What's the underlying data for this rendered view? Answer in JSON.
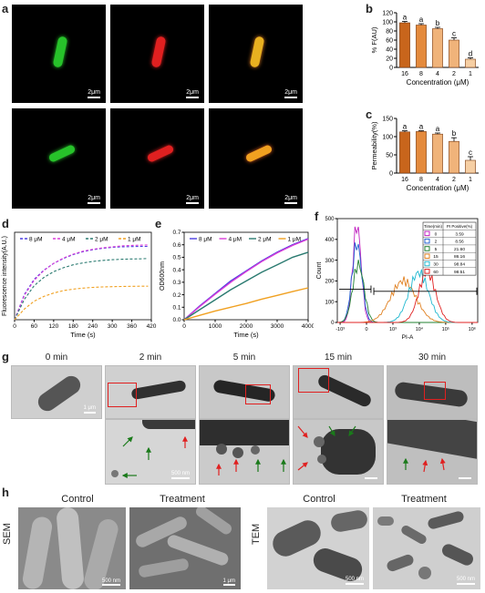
{
  "labels": {
    "a": "a",
    "b": "b",
    "c": "c",
    "d": "d",
    "e": "e",
    "f": "f",
    "g": "g",
    "h": "h"
  },
  "scalebar_2um": "2μm",
  "colors": {
    "bar_dark": "#c8651c",
    "bar_mid": "#e48a3c",
    "bar_light": "#f0b37a",
    "bar_lighter": "#f6cfa4",
    "s8": "#4b3fe0",
    "s4": "#d83bd8",
    "s2": "#2a7a70",
    "s1": "#f0a020",
    "green": "#27c22a",
    "red": "#e02020",
    "merge": "#e8b020"
  },
  "chart_b": {
    "type": "bar",
    "categories": [
      "16",
      "8",
      "4",
      "2",
      "1"
    ],
    "values": [
      98,
      93,
      85,
      60,
      18
    ],
    "errors": [
      3,
      3,
      3,
      5,
      3
    ],
    "letters": [
      "a",
      "a",
      "b",
      "c",
      "d"
    ],
    "ylabel": "% F(AU)",
    "xlabel": "Concentration (μM)",
    "ylim": [
      0,
      120
    ],
    "yticks": [
      "0",
      "20",
      "40",
      "60",
      "80",
      "100",
      "120"
    ]
  },
  "chart_c": {
    "type": "bar",
    "categories": [
      "16",
      "8",
      "4",
      "2",
      "1"
    ],
    "values": [
      113,
      114,
      107,
      87,
      35
    ],
    "errors": [
      3,
      2,
      3,
      10,
      10
    ],
    "letters": [
      "a",
      "a",
      "a",
      "b",
      "c"
    ],
    "ylabel": "Permeability(%)",
    "xlabel": "Concentration (μM)",
    "ylim": [
      0,
      150
    ],
    "yticks": [
      "0",
      "50",
      "100",
      "150"
    ]
  },
  "chart_d": {
    "type": "line",
    "xlabel": "Time (s)",
    "ylabel": "Fluorescence intensity(A.U.)",
    "xticks": [
      "0",
      "60",
      "120",
      "180",
      "240",
      "300",
      "360",
      "420"
    ],
    "xlim": [
      0,
      420
    ],
    "ylim": [
      0,
      1800
    ],
    "series": [
      {
        "name": "8 μM",
        "x": [
          0,
          30,
          60,
          90,
          120,
          150,
          180,
          210,
          240,
          270,
          300,
          330,
          360,
          390,
          410
        ],
        "y": [
          0,
          520,
          830,
          1020,
          1160,
          1260,
          1340,
          1400,
          1440,
          1470,
          1490,
          1500,
          1505,
          1510,
          1510
        ]
      },
      {
        "name": "4 μM",
        "x": [
          0,
          30,
          60,
          90,
          120,
          150,
          180,
          210,
          240,
          270,
          300,
          330,
          360,
          390,
          410
        ],
        "y": [
          0,
          500,
          810,
          1010,
          1160,
          1270,
          1350,
          1410,
          1450,
          1480,
          1500,
          1520,
          1530,
          1535,
          1540
        ]
      },
      {
        "name": "2 μM",
        "x": [
          0,
          30,
          60,
          90,
          120,
          150,
          180,
          210,
          240,
          270,
          300,
          330,
          360,
          390,
          410
        ],
        "y": [
          0,
          420,
          700,
          870,
          990,
          1070,
          1130,
          1170,
          1200,
          1220,
          1235,
          1245,
          1250,
          1255,
          1260
        ]
      },
      {
        "name": "1 μM",
        "x": [
          0,
          30,
          60,
          90,
          120,
          150,
          180,
          210,
          240,
          270,
          300,
          330,
          360,
          390,
          410
        ],
        "y": [
          0,
          220,
          380,
          480,
          550,
          600,
          630,
          650,
          665,
          675,
          680,
          685,
          688,
          690,
          690
        ]
      }
    ]
  },
  "chart_e": {
    "type": "line",
    "xlabel": "Time (s)",
    "ylabel": "OD600nm",
    "xticks": [
      "0",
      "1000",
      "2000",
      "3000",
      "4000"
    ],
    "yticks": [
      "0.0",
      "0.1",
      "0.2",
      "0.3",
      "0.4",
      "0.5",
      "0.6",
      "0.7"
    ],
    "xlim": [
      0,
      4000
    ],
    "ylim": [
      0,
      0.7
    ],
    "series": [
      {
        "name": "8 μM",
        "x": [
          0,
          500,
          1000,
          1500,
          2000,
          2500,
          3000,
          3500,
          4000
        ],
        "y": [
          0,
          0.11,
          0.21,
          0.31,
          0.39,
          0.47,
          0.54,
          0.6,
          0.65
        ]
      },
      {
        "name": "4 μM",
        "x": [
          0,
          500,
          1000,
          1500,
          2000,
          2500,
          3000,
          3500,
          4000
        ],
        "y": [
          0,
          0.105,
          0.205,
          0.3,
          0.385,
          0.465,
          0.535,
          0.595,
          0.645
        ]
      },
      {
        "name": "2 μM",
        "x": [
          0,
          500,
          1000,
          1500,
          2000,
          2500,
          3000,
          3500,
          4000
        ],
        "y": [
          0,
          0.08,
          0.16,
          0.24,
          0.31,
          0.38,
          0.44,
          0.5,
          0.54
        ]
      },
      {
        "name": "1 μM",
        "x": [
          0,
          500,
          1000,
          1500,
          2000,
          2500,
          3000,
          3500,
          4000
        ],
        "y": [
          0,
          0.035,
          0.07,
          0.1,
          0.13,
          0.165,
          0.195,
          0.225,
          0.255
        ]
      }
    ]
  },
  "chart_f": {
    "type": "line",
    "xlabel": "PI-A",
    "ylabel": "Count",
    "yticks": [
      "0",
      "100",
      "200",
      "300",
      "400",
      "500"
    ],
    "ylim": [
      0,
      500
    ],
    "xticks": [
      "-10³",
      "0",
      "10³",
      "10⁴",
      "10⁵",
      "10⁶"
    ],
    "legend_headers": [
      "Time(min)",
      "PI Positive(%)"
    ],
    "series": [
      {
        "time": "0",
        "positive": "3.59",
        "color": "#c020c0",
        "peak_x": 0.14,
        "peak_y": 470,
        "width": 0.03
      },
      {
        "time": "2",
        "positive": "8.56",
        "color": "#2060d0",
        "peak_x": 0.14,
        "peak_y": 380,
        "width": 0.035
      },
      {
        "time": "5",
        "positive": "21.60",
        "color": "#208030",
        "peak_x": 0.15,
        "peak_y": 280,
        "width": 0.04
      },
      {
        "time": "15",
        "positive": "86.16",
        "color": "#e08020",
        "peak_x": 0.47,
        "peak_y": 200,
        "width": 0.09
      },
      {
        "time": "30",
        "positive": "98.84",
        "color": "#20b8d0",
        "peak_x": 0.58,
        "peak_y": 240,
        "width": 0.07
      },
      {
        "time": "60",
        "positive": "98.51",
        "color": "#e02020",
        "peak_x": 0.64,
        "peak_y": 240,
        "width": 0.06
      }
    ]
  },
  "g_times": [
    "0 min",
    "2 min",
    "5 min",
    "15 min",
    "30 min"
  ],
  "g_scale_top": "1 μm",
  "g_scale_zoom": "500 nm",
  "h": {
    "control": "Control",
    "treatment": "Treatment",
    "sem": "SEM",
    "tem": "TEM",
    "scale_500": "500 nm",
    "scale_1": "1 μm"
  }
}
